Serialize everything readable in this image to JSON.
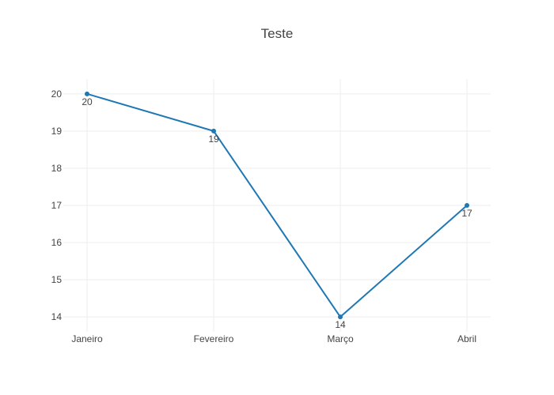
{
  "chart_data": {
    "type": "line",
    "title": "Teste",
    "xlabel": "",
    "ylabel": "",
    "categories": [
      "Janeiro",
      "Fevereiro",
      "Março",
      "Abril"
    ],
    "series": [
      {
        "values": [
          20,
          19,
          14,
          17
        ],
        "data_labels": [
          "20",
          "19",
          "14",
          "17"
        ],
        "color": "#1f77b4",
        "mode": "lines+markers+text"
      }
    ],
    "ylim": [
      13.6,
      20.4
    ],
    "yticks": [
      14,
      15,
      16,
      17,
      18,
      19,
      20
    ],
    "grid": true,
    "legend": "none"
  }
}
